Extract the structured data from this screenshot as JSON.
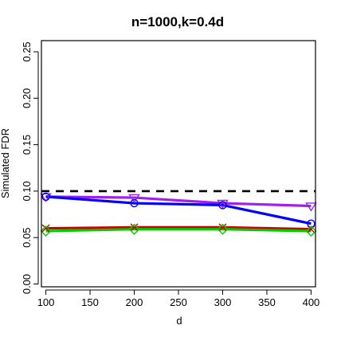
{
  "chart_data": {
    "type": "line",
    "title": "n=1000,k=0.4d",
    "xlabel": "d",
    "ylabel": "Simulated FDR",
    "xlim": [
      95,
      405
    ],
    "ylim": [
      -0.003,
      0.262
    ],
    "x_ticks": [
      100,
      150,
      200,
      250,
      300,
      350,
      400
    ],
    "y_ticks": [
      0.0,
      0.05,
      0.1,
      0.15,
      0.2,
      0.25
    ],
    "x_tick_labels": [
      "100",
      "150",
      "200",
      "250",
      "300",
      "350",
      "400"
    ],
    "y_tick_labels": [
      "0.00",
      "0.05",
      "0.10",
      "0.15",
      "0.20",
      "0.25"
    ],
    "reference_line": {
      "y": 0.1,
      "style": "dashed",
      "color": "#000000"
    },
    "x": [
      100,
      200,
      300,
      400
    ],
    "series": [
      {
        "color": "#a020f0",
        "marker": "triangle-down",
        "values": [
          0.094,
          0.093,
          0.087,
          0.084
        ]
      },
      {
        "color": "#0000ff",
        "marker": "circle",
        "values": [
          0.094,
          0.087,
          0.085,
          0.065
        ]
      },
      {
        "color": "#cc0000",
        "marker": "x",
        "values": [
          0.06,
          0.061,
          0.061,
          0.059
        ]
      },
      {
        "color": "#00cc00",
        "marker": "diamond",
        "values": [
          0.057,
          0.059,
          0.059,
          0.057
        ]
      }
    ]
  }
}
